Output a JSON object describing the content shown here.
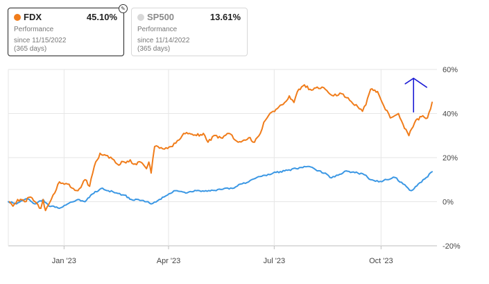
{
  "cards": [
    {
      "ticker": "FDX",
      "pct": "45.10%",
      "label": "Performance",
      "since": "since 11/15/2022",
      "days": "(365 days)",
      "color": "#f07c1a",
      "active": true
    },
    {
      "ticker": "SP500",
      "pct": "13.61%",
      "label": "Performance",
      "since": "since 11/14/2022",
      "days": "(365 days)",
      "color": "#d8d8d8",
      "active": false
    }
  ],
  "chart_data": {
    "type": "line",
    "title": "",
    "xlabel": "",
    "ylabel": "",
    "x_unit": "date",
    "x_range": [
      "2022-11-14",
      "2023-11-14"
    ],
    "ylim": [
      -20,
      60
    ],
    "y_ticks": [
      60,
      40,
      20,
      0,
      -20
    ],
    "y_tick_labels": [
      "60%",
      "40%",
      "20%",
      "0%",
      "-20%"
    ],
    "x_ticks": [
      {
        "date": "2023-01-01",
        "label": "Jan '23"
      },
      {
        "date": "2023-04-01",
        "label": "Apr '23"
      },
      {
        "date": "2023-07-01",
        "label": "Jul '23"
      },
      {
        "date": "2023-10-01",
        "label": "Oct '23"
      }
    ],
    "grid": true,
    "series": [
      {
        "name": "FDX",
        "color": "#f07c1a",
        "points": [
          [
            "2022-11-15",
            0
          ],
          [
            "2022-11-18",
            -2
          ],
          [
            "2022-11-22",
            1
          ],
          [
            "2022-11-28",
            0
          ],
          [
            "2022-12-02",
            2
          ],
          [
            "2022-12-07",
            0
          ],
          [
            "2022-12-12",
            -3
          ],
          [
            "2022-12-14",
            1
          ],
          [
            "2022-12-16",
            -4
          ],
          [
            "2022-12-19",
            -1
          ],
          [
            "2022-12-21",
            1
          ],
          [
            "2022-12-24",
            4
          ],
          [
            "2022-12-28",
            9
          ],
          [
            "2023-01-04",
            8
          ],
          [
            "2023-01-09",
            6
          ],
          [
            "2023-01-13",
            5
          ],
          [
            "2023-01-19",
            10
          ],
          [
            "2023-01-23",
            7
          ],
          [
            "2023-01-27",
            16
          ],
          [
            "2023-02-01",
            22
          ],
          [
            "2023-02-06",
            21
          ],
          [
            "2023-02-13",
            19
          ],
          [
            "2023-02-16",
            17
          ],
          [
            "2023-02-22",
            18
          ],
          [
            "2023-02-27",
            19
          ],
          [
            "2023-03-02",
            17
          ],
          [
            "2023-03-08",
            18
          ],
          [
            "2023-03-13",
            15
          ],
          [
            "2023-03-15",
            18
          ],
          [
            "2023-03-17",
            13
          ],
          [
            "2023-03-20",
            25
          ],
          [
            "2023-03-27",
            24
          ],
          [
            "2023-04-03",
            25
          ],
          [
            "2023-04-10",
            28
          ],
          [
            "2023-04-14",
            31
          ],
          [
            "2023-04-19",
            31
          ],
          [
            "2023-04-25",
            30
          ],
          [
            "2023-05-01",
            31
          ],
          [
            "2023-05-05",
            27
          ],
          [
            "2023-05-10",
            30
          ],
          [
            "2023-05-16",
            29
          ],
          [
            "2023-05-23",
            31
          ],
          [
            "2023-05-31",
            27
          ],
          [
            "2023-06-05",
            28
          ],
          [
            "2023-06-09",
            29
          ],
          [
            "2023-06-14",
            27
          ],
          [
            "2023-06-19",
            31
          ],
          [
            "2023-06-22",
            36
          ],
          [
            "2023-06-26",
            39
          ],
          [
            "2023-06-30",
            41
          ],
          [
            "2023-07-05",
            43
          ],
          [
            "2023-07-10",
            45
          ],
          [
            "2023-07-14",
            48
          ],
          [
            "2023-07-18",
            45
          ],
          [
            "2023-07-21",
            50
          ],
          [
            "2023-07-27",
            53
          ],
          [
            "2023-08-01",
            51
          ],
          [
            "2023-08-07",
            52
          ],
          [
            "2023-08-14",
            51
          ],
          [
            "2023-08-21",
            48
          ],
          [
            "2023-08-28",
            49
          ],
          [
            "2023-09-04",
            46
          ],
          [
            "2023-09-11",
            43
          ],
          [
            "2023-09-15",
            41
          ],
          [
            "2023-09-18",
            44
          ],
          [
            "2023-09-22",
            51
          ],
          [
            "2023-09-28",
            50
          ],
          [
            "2023-10-02",
            45
          ],
          [
            "2023-10-09",
            38
          ],
          [
            "2023-10-16",
            40
          ],
          [
            "2023-10-20",
            35
          ],
          [
            "2023-10-25",
            30
          ],
          [
            "2023-10-31",
            37
          ],
          [
            "2023-11-06",
            39
          ],
          [
            "2023-11-10",
            38
          ],
          [
            "2023-11-14",
            45.1
          ]
        ]
      },
      {
        "name": "SP500",
        "color": "#3a97e4",
        "points": [
          [
            "2022-11-14",
            0
          ],
          [
            "2022-11-21",
            -1
          ],
          [
            "2022-11-28",
            1
          ],
          [
            "2022-12-02",
            1
          ],
          [
            "2022-12-07",
            -1
          ],
          [
            "2022-12-14",
            1
          ],
          [
            "2022-12-19",
            -2
          ],
          [
            "2022-12-23",
            -2
          ],
          [
            "2022-12-28",
            -3
          ],
          [
            "2023-01-04",
            -1
          ],
          [
            "2023-01-09",
            0
          ],
          [
            "2023-01-13",
            1
          ],
          [
            "2023-01-19",
            0
          ],
          [
            "2023-01-24",
            3
          ],
          [
            "2023-02-02",
            6
          ],
          [
            "2023-02-08",
            5
          ],
          [
            "2023-02-15",
            4
          ],
          [
            "2023-02-22",
            3
          ],
          [
            "2023-02-28",
            1
          ],
          [
            "2023-03-06",
            1
          ],
          [
            "2023-03-13",
            0
          ],
          [
            "2023-03-17",
            -1
          ],
          [
            "2023-03-24",
            1
          ],
          [
            "2023-03-31",
            3
          ],
          [
            "2023-04-07",
            5
          ],
          [
            "2023-04-17",
            4
          ],
          [
            "2023-04-25",
            5
          ],
          [
            "2023-05-03",
            5
          ],
          [
            "2023-05-12",
            5
          ],
          [
            "2023-05-19",
            6
          ],
          [
            "2023-05-26",
            6
          ],
          [
            "2023-06-02",
            8
          ],
          [
            "2023-06-09",
            9
          ],
          [
            "2023-06-16",
            11
          ],
          [
            "2023-06-23",
            12
          ],
          [
            "2023-06-30",
            13
          ],
          [
            "2023-07-10",
            14
          ],
          [
            "2023-07-20",
            15
          ],
          [
            "2023-07-31",
            16
          ],
          [
            "2023-08-07",
            14
          ],
          [
            "2023-08-14",
            13
          ],
          [
            "2023-08-18",
            11
          ],
          [
            "2023-08-25",
            12
          ],
          [
            "2023-09-01",
            14
          ],
          [
            "2023-09-11",
            13
          ],
          [
            "2023-09-18",
            12
          ],
          [
            "2023-09-22",
            10
          ],
          [
            "2023-09-29",
            9
          ],
          [
            "2023-10-06",
            10
          ],
          [
            "2023-10-13",
            11
          ],
          [
            "2023-10-20",
            8
          ],
          [
            "2023-10-27",
            5
          ],
          [
            "2023-11-02",
            8
          ],
          [
            "2023-11-09",
            11
          ],
          [
            "2023-11-14",
            13.61
          ]
        ]
      }
    ],
    "annotation": {
      "type": "arrow",
      "direction": "up",
      "color": "#1a1ad4"
    }
  }
}
